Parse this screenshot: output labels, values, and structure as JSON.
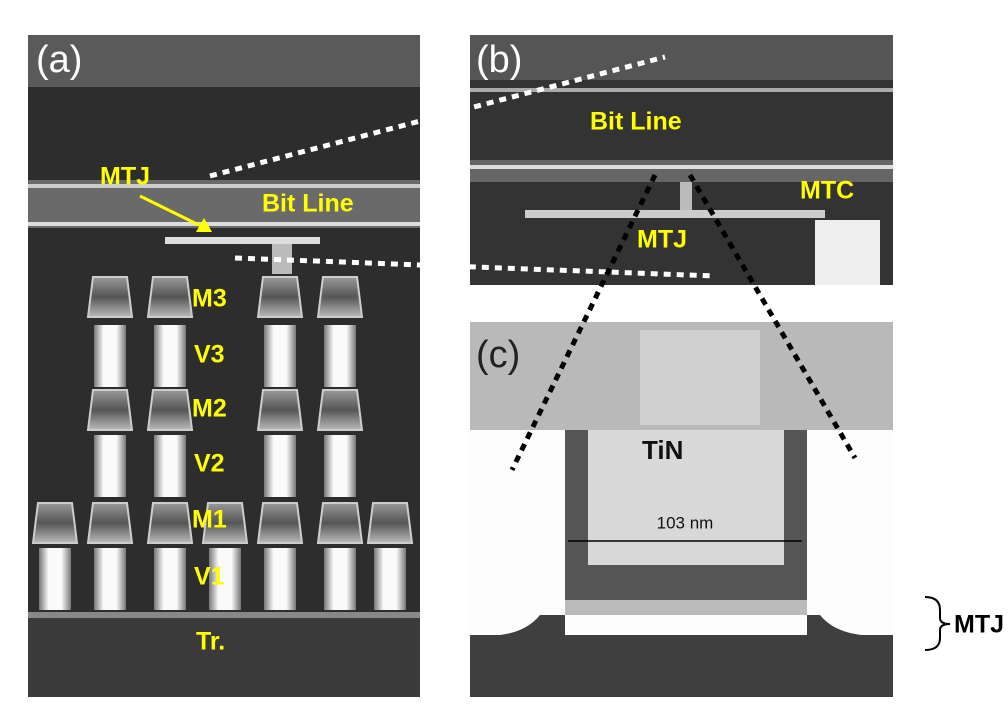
{
  "panels": [
    {
      "label": "(a)",
      "annotations": [
        "MTJ",
        "Bit Line",
        "M3",
        "V3",
        "M2",
        "V2",
        "M1",
        "V1",
        "Tr."
      ]
    },
    {
      "label": "(b)",
      "annotations": [
        "Bit Line",
        "MTC",
        "MTJ"
      ]
    },
    {
      "label": "(c)",
      "annotations": [
        "TiN",
        "103 nm"
      ]
    }
  ],
  "side_label": "MTJ"
}
